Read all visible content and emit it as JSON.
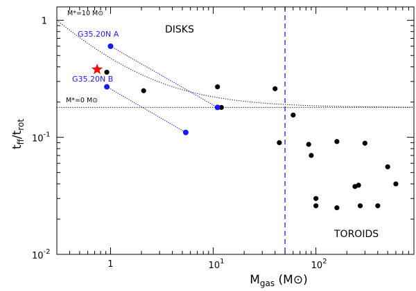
{
  "chart_data": {
    "type": "scatter",
    "title": "",
    "xlabel": "M_gas (M⊙)",
    "ylabel": "t_ff/t_rot",
    "x_scale": "log",
    "y_scale": "log",
    "xlim": [
      0.3,
      900
    ],
    "ylim": [
      0.01,
      1.3
    ],
    "grid": false,
    "x_ticks": [
      {
        "value": 1,
        "label": "1"
      },
      {
        "value": 10,
        "label": "10"
      },
      {
        "value": 100,
        "label": "100"
      }
    ],
    "y_ticks": [
      {
        "value": 1,
        "label": "1"
      },
      {
        "value": 0.1,
        "label": "10⁻¹"
      },
      {
        "value": 0.01,
        "label": "10⁻²"
      }
    ],
    "region_labels": {
      "disks": "DISKS",
      "toroids": "TOROIDS"
    },
    "vertical_line": {
      "x": 50,
      "color": "#2233cc"
    },
    "curves": [
      {
        "label": "M*=10 M⊙",
        "label_x": 0.33,
        "label_y": 1.0,
        "type": "curve",
        "y_floor": 0.18,
        "y_at_03": 1.0
      },
      {
        "label": "M*=0 M⊙",
        "label_x": 0.33,
        "label_y": 0.185,
        "type": "horizontal",
        "y": 0.18
      }
    ],
    "star": {
      "x": 0.74,
      "y": 0.38,
      "color": "#ee1111"
    },
    "series": [
      {
        "name": "black",
        "color": "#000000",
        "points": [
          [
            0.92,
            0.36
          ],
          [
            2.1,
            0.25
          ],
          [
            11,
            0.27
          ],
          [
            12,
            0.18
          ],
          [
            40,
            0.26
          ],
          [
            44,
            0.09
          ],
          [
            60,
            0.155
          ],
          [
            85,
            0.087
          ],
          [
            90,
            0.07
          ],
          [
            100,
            0.03
          ],
          [
            100,
            0.026
          ],
          [
            160,
            0.092
          ],
          [
            160,
            0.025
          ],
          [
            240,
            0.038
          ],
          [
            260,
            0.039
          ],
          [
            270,
            0.026
          ],
          [
            300,
            0.089
          ],
          [
            400,
            0.026
          ],
          [
            500,
            0.056
          ],
          [
            600,
            0.04
          ]
        ]
      },
      {
        "name": "blue",
        "color": "#1a1aee",
        "points": [
          {
            "x": 1.0,
            "y": 0.6,
            "label": "G35.20N A"
          },
          {
            "x": 11.0,
            "y": 0.18
          },
          {
            "x": 0.92,
            "y": 0.27,
            "label": "G35.20N B"
          },
          {
            "x": 5.4,
            "y": 0.11
          }
        ],
        "links": [
          [
            0,
            1
          ],
          [
            2,
            3
          ]
        ]
      }
    ]
  }
}
